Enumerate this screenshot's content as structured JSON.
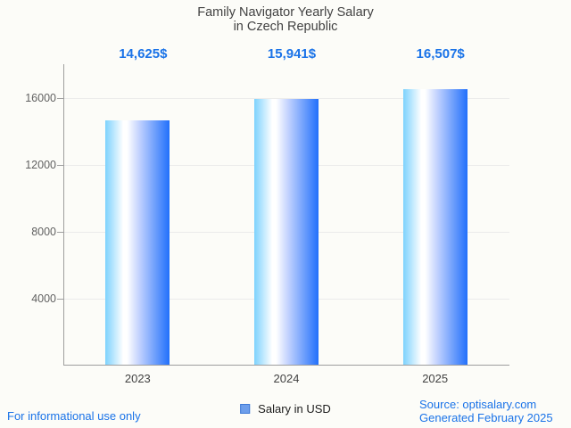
{
  "title": {
    "line1": "Family Navigator Yearly Salary",
    "line2": "in Czech Republic"
  },
  "chart_data": {
    "type": "bar",
    "title": "Family Navigator Yearly Salary in Czech Republic",
    "categories": [
      "2023",
      "2024",
      "2025"
    ],
    "values": [
      14625,
      15941,
      16507
    ],
    "value_labels": [
      "14,625$",
      "15,941$",
      "16,507$"
    ],
    "series_name": "Salary in USD",
    "xlabel": "",
    "ylabel": "",
    "yticks": [
      4000,
      8000,
      12000,
      16000
    ],
    "ylim": [
      0,
      18000
    ],
    "grid": true,
    "legend": {
      "label": "Salary in USD",
      "position": "bottom"
    },
    "colors": {
      "accent_blue": "#1a73e8",
      "title_color": "#424242",
      "axis_label": "#616161",
      "category_label": "#424242",
      "gridline": "#ebebeb",
      "axis_line": "#9e9e9e",
      "background": "#fcfcf8",
      "legend_swatch_fill": "#6d9eeb",
      "legend_swatch_border": "#3f7ad6",
      "bar_gradient": [
        {
          "pos": 0,
          "color": "#7dd2fd"
        },
        {
          "pos": 28,
          "color": "#ffffff"
        },
        {
          "pos": 34,
          "color": "#ffffff"
        },
        {
          "pos": 52,
          "color": "#c5d4fe"
        },
        {
          "pos": 100,
          "color": "#2270fb"
        }
      ]
    }
  },
  "footer": {
    "disclaimer": "For informational use only",
    "source_line1": "Source: optisalary.com",
    "source_line2": "Generated February 2025"
  }
}
